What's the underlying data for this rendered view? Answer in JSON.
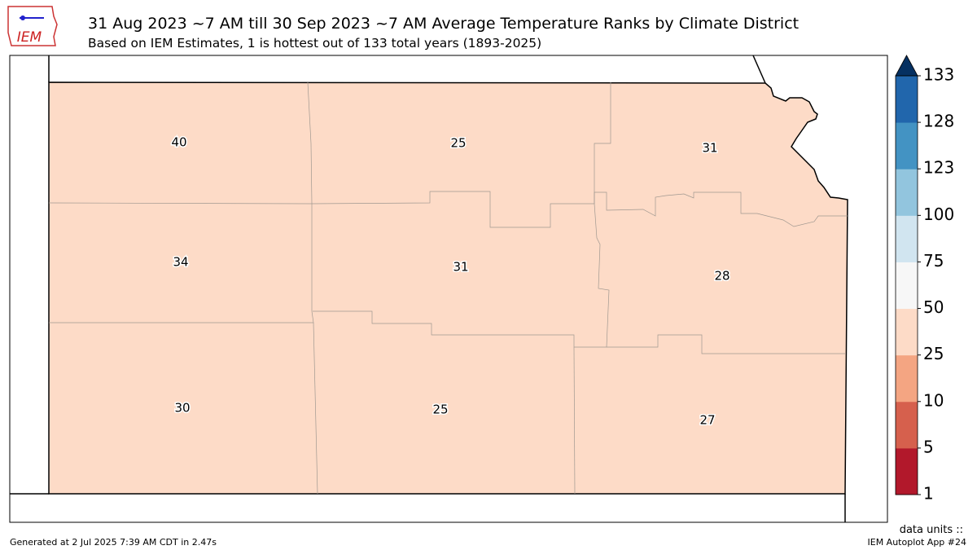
{
  "header": {
    "logo": "IEM",
    "title": "31 Aug 2023 ~7 AM till 30 Sep 2023 ~7 AM Average Temperature Ranks by Climate District",
    "subtitle": "Based on IEM Estimates, 1 is hottest out of 133 total years (1893-2025)"
  },
  "map": {
    "fill_color": "#fddbc7",
    "district_values": [
      40,
      25,
      31,
      34,
      31,
      28,
      30,
      25,
      27
    ]
  },
  "colorbar": {
    "ticks": [
      1,
      5,
      10,
      25,
      50,
      75,
      100,
      123,
      128,
      133
    ],
    "colors": [
      "#b2182b",
      "#d6604d",
      "#f4a582",
      "#fddbc7",
      "#f7f7f7",
      "#d1e5f0",
      "#92c5de",
      "#4393c3",
      "#2166ac"
    ],
    "extend_color": "#053061"
  },
  "footer": {
    "generated": "Generated at 2 Jul 2025 7:39 AM CDT in 2.47s",
    "units": "data units ::",
    "app": "IEM Autoplot App #24"
  }
}
